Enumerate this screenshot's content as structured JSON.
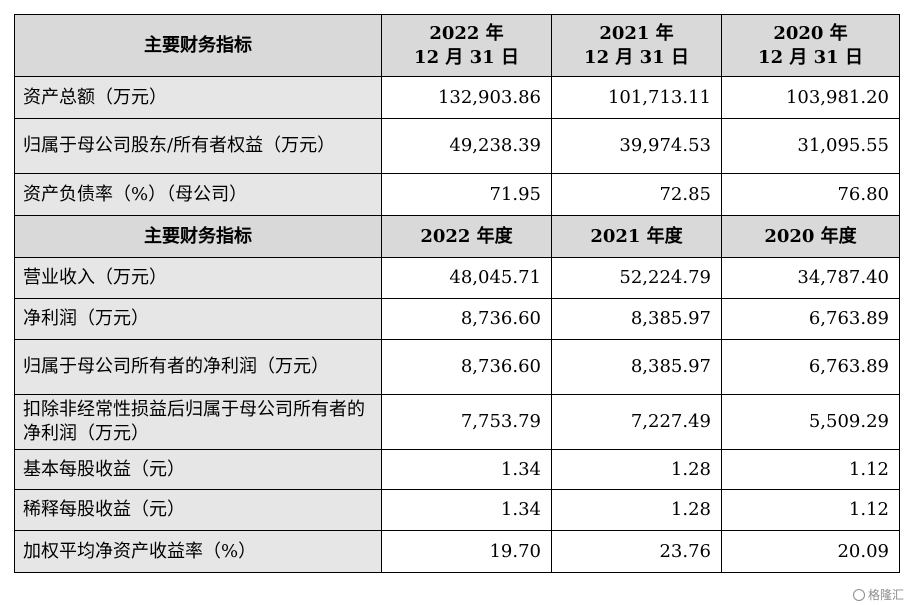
{
  "section1": {
    "header": {
      "label": "主要财务指标",
      "cols": [
        {
          "line1": "2022 年",
          "line2": "12 月 31 日"
        },
        {
          "line1": "2021 年",
          "line2": "12 月 31 日"
        },
        {
          "line1": "2020 年",
          "line2": "12 月 31 日"
        }
      ]
    },
    "rows": [
      {
        "label": "资产总额（万元）",
        "values": [
          "132,903.86",
          "101,713.11",
          "103,981.20"
        ]
      },
      {
        "label": "归属于母公司股东/所有者权益（万元）",
        "values": [
          "49,238.39",
          "39,974.53",
          "31,095.55"
        ]
      },
      {
        "label": "资产负债率（%）（母公司）",
        "values": [
          "71.95",
          "72.85",
          "76.80"
        ]
      }
    ]
  },
  "section2": {
    "header": {
      "label": "主要财务指标",
      "cols": [
        "2022 年度",
        "2021 年度",
        "2020 年度"
      ]
    },
    "rows": [
      {
        "label": "营业收入（万元）",
        "values": [
          "48,045.71",
          "52,224.79",
          "34,787.40"
        ]
      },
      {
        "label": "净利润（万元）",
        "values": [
          "8,736.60",
          "8,385.97",
          "6,763.89"
        ]
      },
      {
        "label": "归属于母公司所有者的净利润（万元）",
        "values": [
          "8,736.60",
          "8,385.97",
          "6,763.89"
        ]
      },
      {
        "label": "扣除非经常性损益后归属于母公司所有者的净利润（万元）",
        "values": [
          "7,753.79",
          "7,227.49",
          "5,509.29"
        ]
      },
      {
        "label": "基本每股收益（元）",
        "values": [
          "1.34",
          "1.28",
          "1.12"
        ]
      },
      {
        "label": "稀释每股收益（元）",
        "values": [
          "1.34",
          "1.28",
          "1.12"
        ]
      },
      {
        "label": "加权平均净资产收益率（%）",
        "values": [
          "19.70",
          "23.76",
          "20.09"
        ]
      }
    ]
  },
  "watermark": {
    "text": "格隆汇",
    "icon": "logo-icon"
  }
}
